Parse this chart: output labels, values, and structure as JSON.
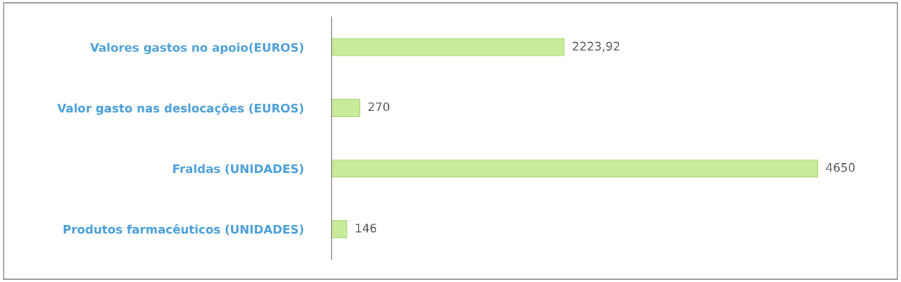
{
  "chart_data": {
    "type": "bar",
    "orientation": "horizontal",
    "categories": [
      "Valores gastos no apoio(EUROS)",
      "Valor gasto nas deslocações (EUROS)",
      "Fraldas (UNIDADES)",
      "Produtos farmacêuticos (UNIDADES)"
    ],
    "values": [
      2223.92,
      270,
      4650,
      146
    ],
    "value_labels": [
      "2223,92",
      "270",
      "4650",
      "146"
    ],
    "color": "#c9ec9c",
    "grid": false,
    "legend": false
  }
}
